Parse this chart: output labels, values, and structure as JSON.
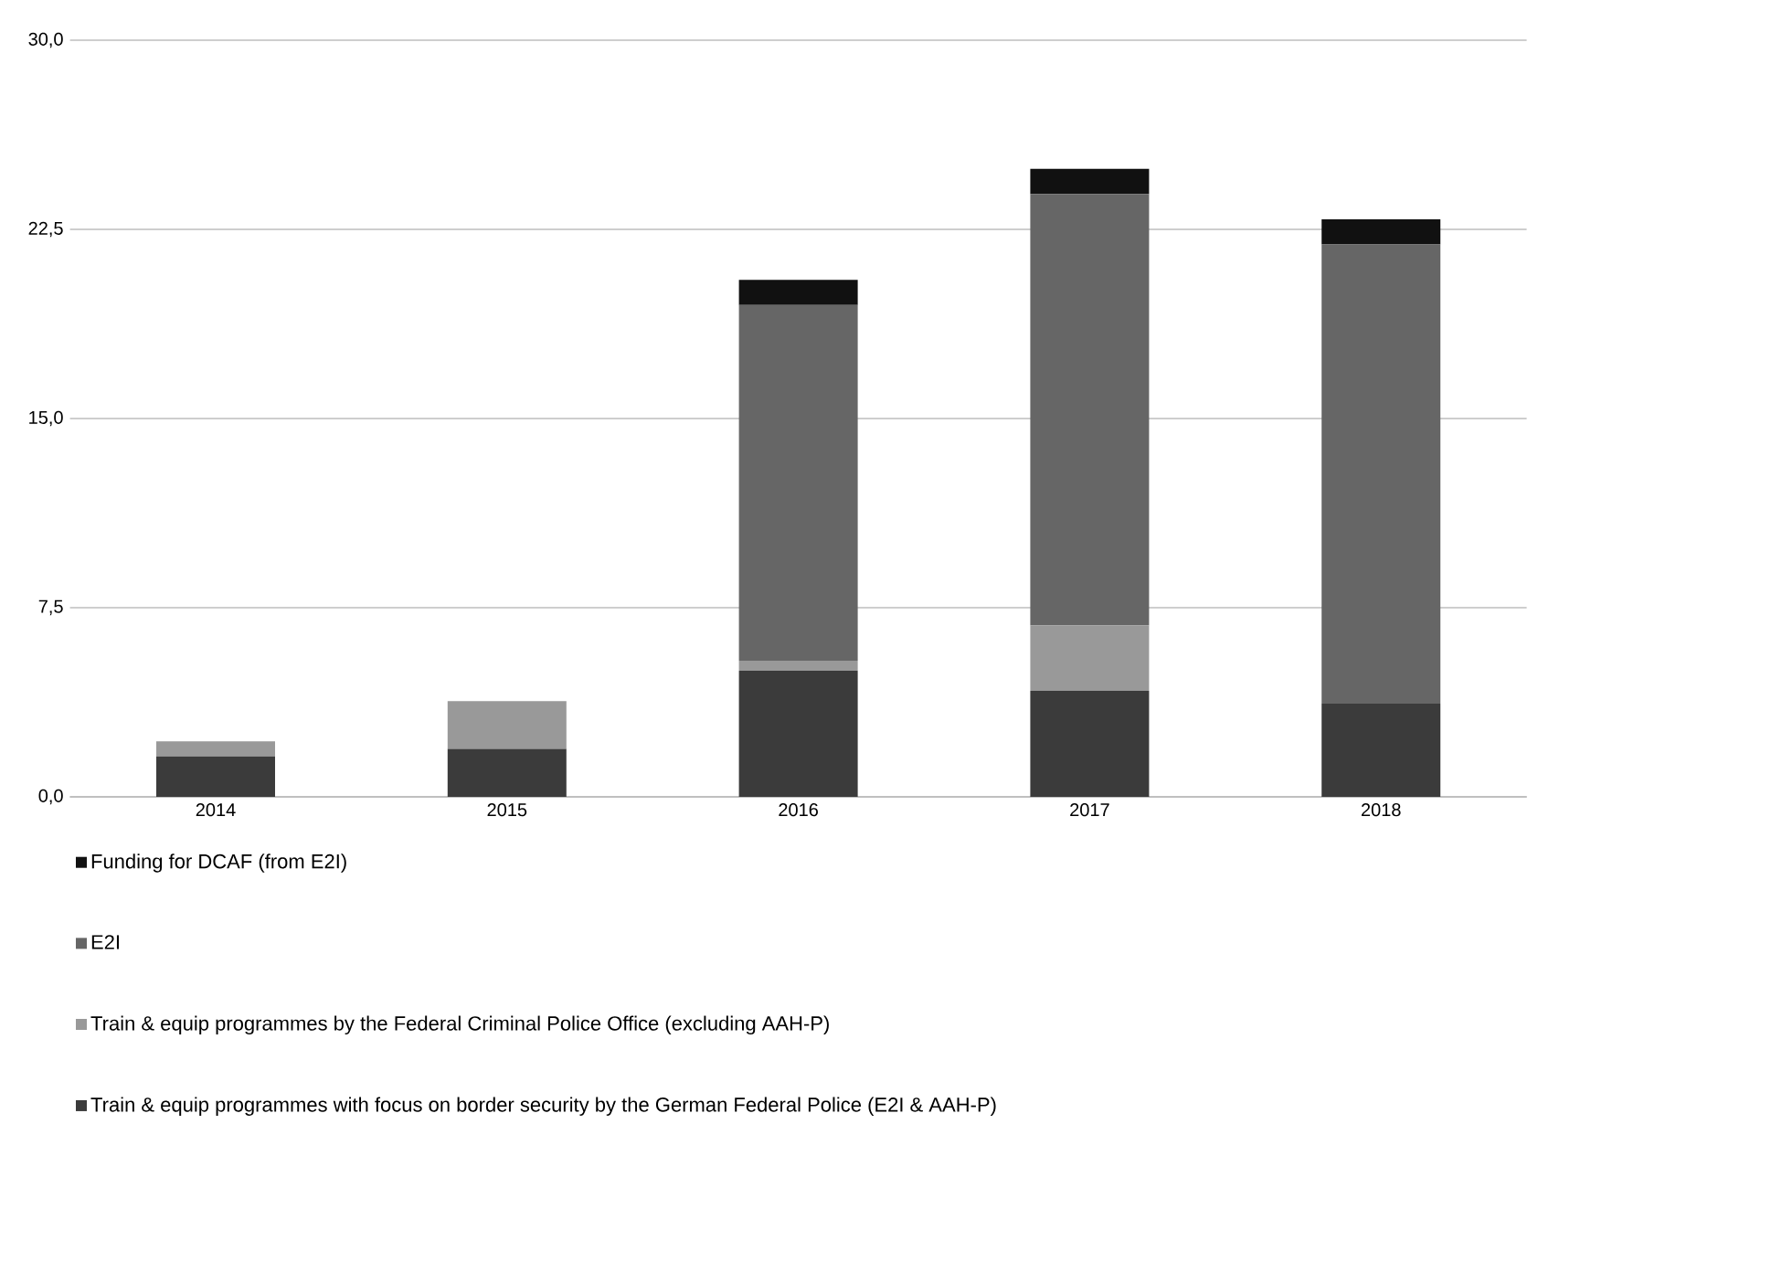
{
  "chart_data": {
    "type": "bar",
    "stacked": true,
    "categories": [
      "2014",
      "2015",
      "2016",
      "2017",
      "2018"
    ],
    "series": [
      {
        "name": "Train & equip programmes with focus on border security by the German Federal Police (E2I & AAH-P)",
        "color": "#3b3b3b",
        "values": [
          1.6,
          1.9,
          5.0,
          4.2,
          3.7
        ]
      },
      {
        "name": "Train & equip programmes by the Federal Criminal Police Office (excluding AAH-P)",
        "color": "#999999",
        "values": [
          0.6,
          1.9,
          0.4,
          2.6,
          0.0
        ]
      },
      {
        "name": "E2I",
        "color": "#666666",
        "values": [
          0.0,
          0.0,
          14.1,
          17.1,
          18.2
        ]
      },
      {
        "name": "Funding for DCAF (from E2I)",
        "color": "#111111",
        "values": [
          0.0,
          0.0,
          1.0,
          1.0,
          1.0
        ]
      }
    ],
    "ylim": [
      0,
      30
    ],
    "yticks": [
      {
        "value": 0,
        "label": "0,0"
      },
      {
        "value": 7.5,
        "label": "7,5"
      },
      {
        "value": 15,
        "label": "15,0"
      },
      {
        "value": 22.5,
        "label": "22,5"
      },
      {
        "value": 30,
        "label": "30,0"
      }
    ],
    "grid": "y",
    "legend": "bottom"
  }
}
